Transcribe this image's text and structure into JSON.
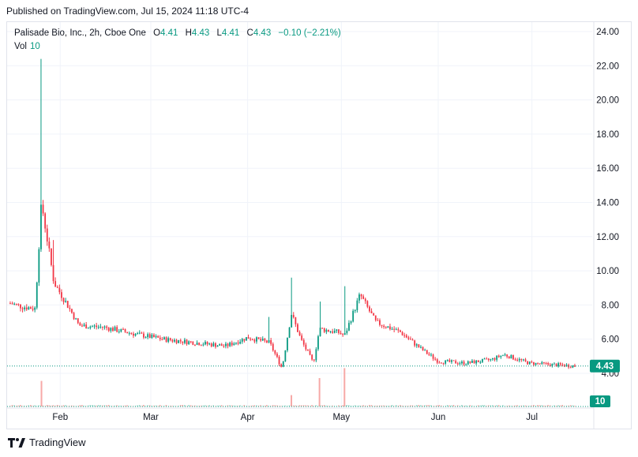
{
  "published": "Published on TradingView.com, Jul 15, 2024 11:18 UTC-4",
  "legend": {
    "symbol": "Palisade Bio, Inc., 2h, Cboe One",
    "o_label": "O",
    "o": "4.41",
    "h_label": "H",
    "h": "4.43",
    "l_label": "L",
    "l": "4.41",
    "c_label": "C",
    "c": "4.43",
    "change": "−0.10 (−2.21%)",
    "vol_label": "Vol",
    "vol": "10"
  },
  "price_badge": "4.43",
  "volume_badge": "10",
  "footer_brand": "TradingView",
  "colors": {
    "up": "#089981",
    "down": "#f23645",
    "grid": "#f0f3fa",
    "text": "#131722"
  },
  "chart_data": {
    "type": "candlestick",
    "x_ticks": [
      "Feb",
      "Mar",
      "Apr",
      "May",
      "Jun",
      "Jul"
    ],
    "y_ticks": [
      "24.00",
      "22.00",
      "20.00",
      "18.00",
      "16.00",
      "14.00",
      "12.00",
      "10.00",
      "8.00",
      "6.00",
      "4.00"
    ],
    "ylim": [
      2.3,
      24.5
    ],
    "last_price": 4.43,
    "grid": true,
    "price_series": [
      {
        "date": "2024-01-16",
        "close": 8.1
      },
      {
        "date": "2024-01-20",
        "close": 7.9
      },
      {
        "date": "2024-01-24",
        "close": 7.8
      },
      {
        "date": "2024-01-26",
        "close": 14.0,
        "high": 22.4
      },
      {
        "date": "2024-01-30",
        "close": 9.3,
        "high": 11.8
      },
      {
        "date": "2024-02-03",
        "close": 8.1
      },
      {
        "date": "2024-02-07",
        "close": 6.8
      },
      {
        "date": "2024-02-15",
        "close": 6.7
      },
      {
        "date": "2024-02-25",
        "close": 6.3
      },
      {
        "date": "2024-03-05",
        "close": 6.0
      },
      {
        "date": "2024-03-15",
        "close": 5.8
      },
      {
        "date": "2024-03-25",
        "close": 5.6
      },
      {
        "date": "2024-04-01",
        "close": 6.1
      },
      {
        "date": "2024-04-08",
        "close": 5.8,
        "high": 7.3
      },
      {
        "date": "2024-04-12",
        "close": 4.3
      },
      {
        "date": "2024-04-15",
        "close": 7.5,
        "high": 9.6
      },
      {
        "date": "2024-04-18",
        "close": 6.0
      },
      {
        "date": "2024-04-22",
        "close": 4.6
      },
      {
        "date": "2024-04-24",
        "close": 6.6,
        "high": 8.2
      },
      {
        "date": "2024-04-30",
        "close": 6.4
      },
      {
        "date": "2024-05-02",
        "close": 6.2,
        "high": 9.1
      },
      {
        "date": "2024-05-07",
        "close": 8.6
      },
      {
        "date": "2024-05-12",
        "close": 7.0
      },
      {
        "date": "2024-05-20",
        "close": 6.4
      },
      {
        "date": "2024-05-26",
        "close": 5.5
      },
      {
        "date": "2024-06-01",
        "close": 4.7
      },
      {
        "date": "2024-06-10",
        "close": 4.6
      },
      {
        "date": "2024-06-18",
        "close": 4.8
      },
      {
        "date": "2024-06-22",
        "close": 5.1
      },
      {
        "date": "2024-06-30",
        "close": 4.6
      },
      {
        "date": "2024-07-08",
        "close": 4.5
      },
      {
        "date": "2024-07-15",
        "close": 4.43
      }
    ],
    "volume_spikes": [
      {
        "date": "2024-01-26",
        "relative": 0.9
      },
      {
        "date": "2024-04-15",
        "relative": 0.4
      },
      {
        "date": "2024-04-24",
        "relative": 1.0
      },
      {
        "date": "2024-05-02",
        "relative": 1.35
      }
    ]
  }
}
